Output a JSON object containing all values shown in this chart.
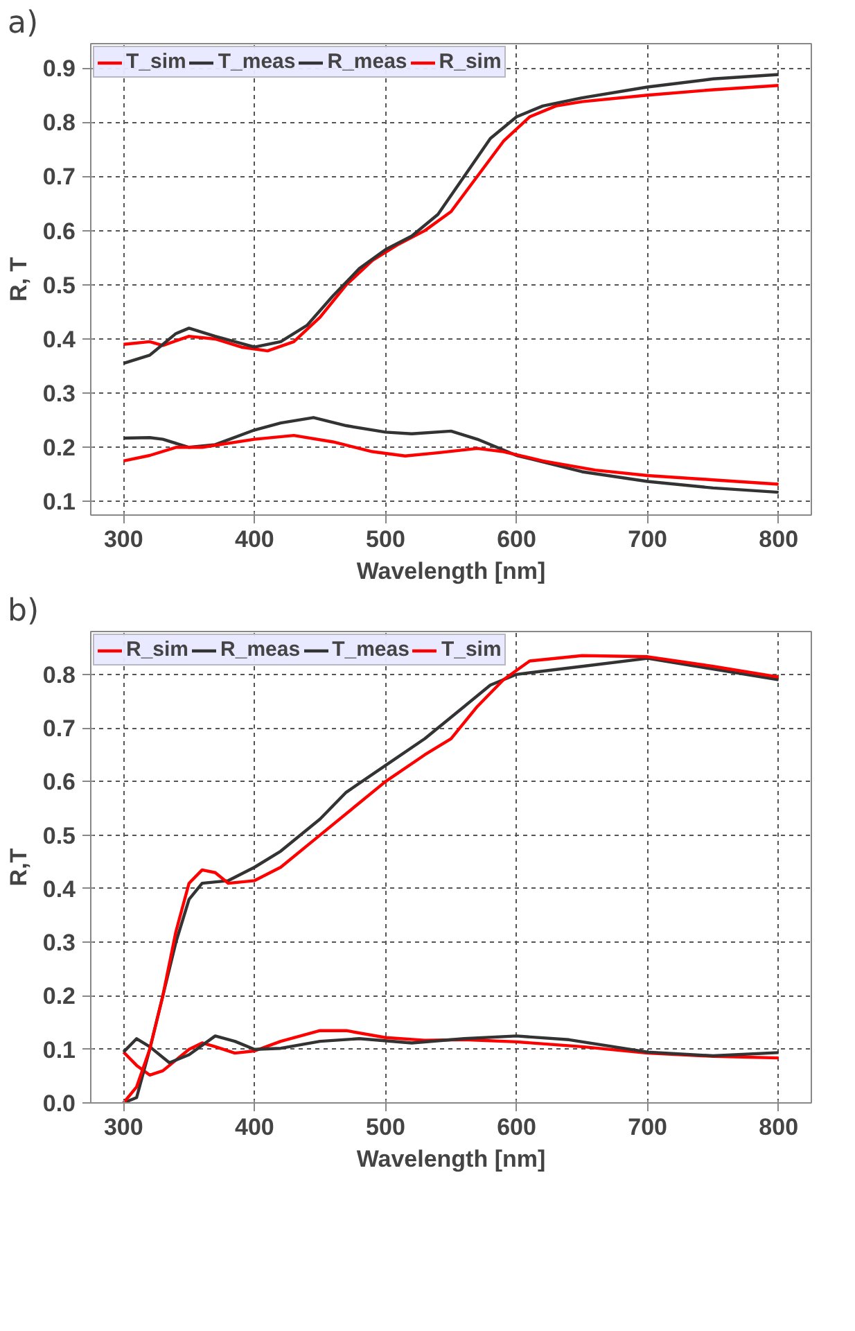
{
  "chart_data": [
    {
      "type": "line",
      "title": "a)",
      "xlabel": "Wavelength [nm]",
      "ylabel": "R, T",
      "xlim": [
        275,
        825
      ],
      "ylim": [
        0.075,
        0.945
      ],
      "xticks": [
        300,
        400,
        500,
        600,
        700,
        800
      ],
      "yticks": [
        0.1,
        0.2,
        0.3,
        0.4,
        0.5,
        0.6,
        0.7,
        0.8,
        0.9
      ],
      "grid": true,
      "legend": "top",
      "line_style": "solid",
      "marker": "none",
      "series": [
        {
          "name": "T_sim",
          "color": "#ff0000",
          "x": [
            300,
            320,
            330,
            350,
            370,
            390,
            410,
            430,
            450,
            470,
            490,
            510,
            530,
            550,
            570,
            590,
            610,
            630,
            650,
            700,
            750,
            800
          ],
          "values": [
            0.39,
            0.395,
            0.388,
            0.405,
            0.4,
            0.385,
            0.378,
            0.395,
            0.44,
            0.5,
            0.545,
            0.575,
            0.6,
            0.635,
            0.7,
            0.765,
            0.81,
            0.83,
            0.838,
            0.85,
            0.86,
            0.868
          ]
        },
        {
          "name": "T_meas",
          "color": "#333333",
          "x": [
            300,
            320,
            340,
            350,
            370,
            400,
            420,
            440,
            460,
            480,
            500,
            520,
            540,
            560,
            580,
            600,
            620,
            650,
            700,
            750,
            800
          ],
          "values": [
            0.355,
            0.37,
            0.41,
            0.42,
            0.405,
            0.385,
            0.395,
            0.425,
            0.48,
            0.53,
            0.565,
            0.59,
            0.63,
            0.7,
            0.77,
            0.81,
            0.83,
            0.845,
            0.865,
            0.88,
            0.888
          ]
        },
        {
          "name": "R_meas",
          "color": "#333333",
          "x": [
            300,
            320,
            330,
            350,
            370,
            400,
            420,
            445,
            470,
            500,
            520,
            550,
            570,
            600,
            650,
            700,
            750,
            800
          ],
          "values": [
            0.217,
            0.218,
            0.215,
            0.2,
            0.205,
            0.232,
            0.245,
            0.255,
            0.24,
            0.228,
            0.225,
            0.23,
            0.215,
            0.185,
            0.155,
            0.137,
            0.125,
            0.117
          ]
        },
        {
          "name": "R_sim",
          "color": "#ff0000",
          "x": [
            300,
            320,
            340,
            360,
            400,
            430,
            460,
            490,
            515,
            540,
            570,
            590,
            620,
            660,
            700,
            750,
            800
          ],
          "values": [
            0.175,
            0.185,
            0.2,
            0.2,
            0.215,
            0.222,
            0.21,
            0.192,
            0.184,
            0.19,
            0.198,
            0.192,
            0.175,
            0.158,
            0.148,
            0.14,
            0.132
          ]
        }
      ]
    },
    {
      "type": "line",
      "title": "b)",
      "xlabel": "Wavelength [nm]",
      "ylabel": "R,T",
      "xlim": [
        275,
        825
      ],
      "ylim": [
        0,
        0.88
      ],
      "xticks": [
        300,
        400,
        500,
        600,
        700,
        800
      ],
      "yticks": [
        {
          "value": 0,
          "label": "0.0"
        },
        0.1,
        0.2,
        0.3,
        0.4,
        0.5,
        0.6,
        0.7,
        0.8
      ],
      "grid": true,
      "legend": "top",
      "line_style": "solid",
      "marker": "none",
      "series": [
        {
          "name": "R_sim",
          "color": "#ff0000",
          "x": [
            300,
            310,
            320,
            330,
            350,
            360,
            370,
            385,
            400,
            420,
            450,
            470,
            500,
            530,
            560,
            600,
            650,
            700,
            750,
            800
          ],
          "values": [
            0.095,
            0.07,
            0.052,
            0.06,
            0.1,
            0.112,
            0.105,
            0.093,
            0.097,
            0.115,
            0.135,
            0.135,
            0.122,
            0.117,
            0.118,
            0.114,
            0.105,
            0.093,
            0.087,
            0.084
          ]
        },
        {
          "name": "R_meas",
          "color": "#333333",
          "x": [
            300,
            310,
            320,
            335,
            350,
            370,
            385,
            400,
            420,
            450,
            480,
            520,
            560,
            600,
            640,
            700,
            750,
            800
          ],
          "values": [
            0.095,
            0.12,
            0.105,
            0.075,
            0.09,
            0.125,
            0.115,
            0.1,
            0.102,
            0.115,
            0.12,
            0.112,
            0.12,
            0.125,
            0.118,
            0.095,
            0.088,
            0.094
          ]
        },
        {
          "name": "T_meas",
          "color": "#333333",
          "x": [
            300,
            310,
            320,
            330,
            340,
            350,
            360,
            380,
            400,
            420,
            450,
            470,
            500,
            530,
            560,
            580,
            600,
            650,
            700,
            750,
            800
          ],
          "values": [
            0.0,
            0.01,
            0.1,
            0.2,
            0.3,
            0.38,
            0.41,
            0.415,
            0.44,
            0.47,
            0.53,
            0.58,
            0.63,
            0.68,
            0.74,
            0.78,
            0.8,
            0.815,
            0.83,
            0.81,
            0.79
          ]
        },
        {
          "name": "T_sim",
          "color": "#ff0000",
          "x": [
            300,
            310,
            320,
            330,
            340,
            350,
            360,
            370,
            380,
            400,
            420,
            450,
            480,
            500,
            530,
            550,
            570,
            590,
            610,
            650,
            700,
            750,
            800
          ],
          "values": [
            0.0,
            0.03,
            0.1,
            0.2,
            0.32,
            0.41,
            0.435,
            0.43,
            0.41,
            0.415,
            0.44,
            0.5,
            0.56,
            0.6,
            0.65,
            0.68,
            0.74,
            0.79,
            0.825,
            0.835,
            0.833,
            0.815,
            0.795
          ]
        }
      ]
    }
  ]
}
